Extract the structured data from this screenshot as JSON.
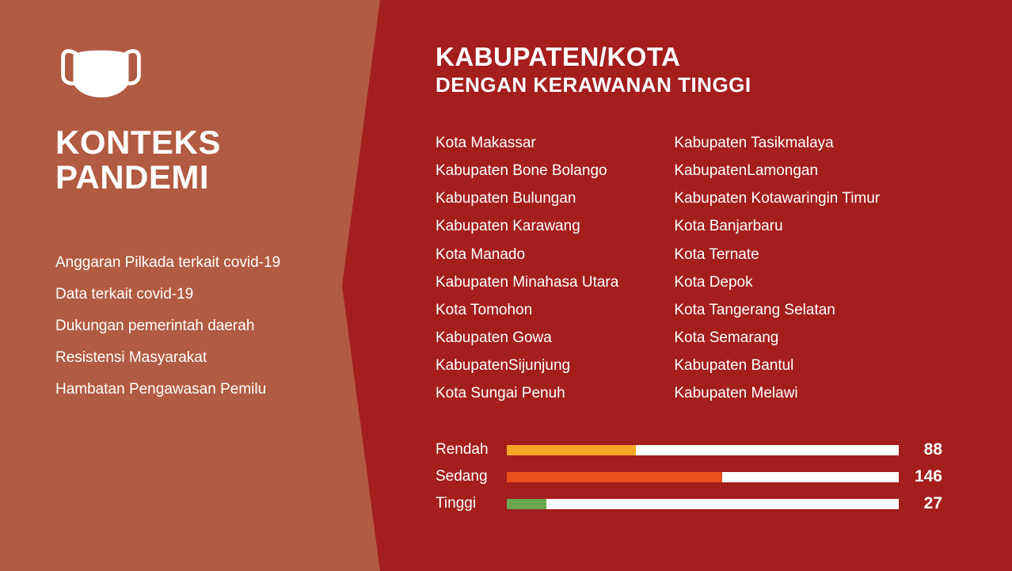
{
  "left": {
    "title_line1": "KONTEKS",
    "title_line2": "PANDEMI",
    "items": [
      "Anggaran Pilkada terkait covid-19",
      "Data terkait covid-19",
      "Dukungan pemerintah daerah",
      "Resistensi Masyarakat",
      "Hambatan Pengawasan Pemilu"
    ]
  },
  "right": {
    "title_main": "KABUPATEN/KOTA",
    "title_sub": "DENGAN KERAWANAN TINGGI",
    "regions_col1": [
      "Kota Makassar",
      "Kabupaten Bone Bolango",
      "Kabupaten Bulungan",
      "Kabupaten Karawang",
      "Kota Manado",
      "Kabupaten Minahasa Utara",
      "Kota Tomohon",
      "Kabupaten Gowa",
      "KabupatenSijunjung",
      "Kota Sungai Penuh"
    ],
    "regions_col2": [
      "Kabupaten Tasikmalaya",
      "KabupatenLamongan",
      "Kabupaten Kotawaringin Timur",
      "Kota Banjarbaru",
      "Kota Ternate",
      "Kota Depok",
      "Kota Tangerang Selatan",
      "Kota Semarang",
      "Kabupaten Bantul",
      "Kabupaten Melawi"
    ],
    "bars": [
      {
        "label": "Rendah",
        "value": 88,
        "fill_pct": 33,
        "color": "#f5a623"
      },
      {
        "label": "Sedang",
        "value": 146,
        "fill_pct": 55,
        "color": "#e94e1b"
      },
      {
        "label": "Tinggi",
        "value": 27,
        "fill_pct": 10,
        "color": "#6aa84f"
      }
    ]
  },
  "colors": {
    "slide_bg": "#a41e1e",
    "left_bg": "#b15b42",
    "text": "#ffffff",
    "bar_track": "#ffffff"
  }
}
